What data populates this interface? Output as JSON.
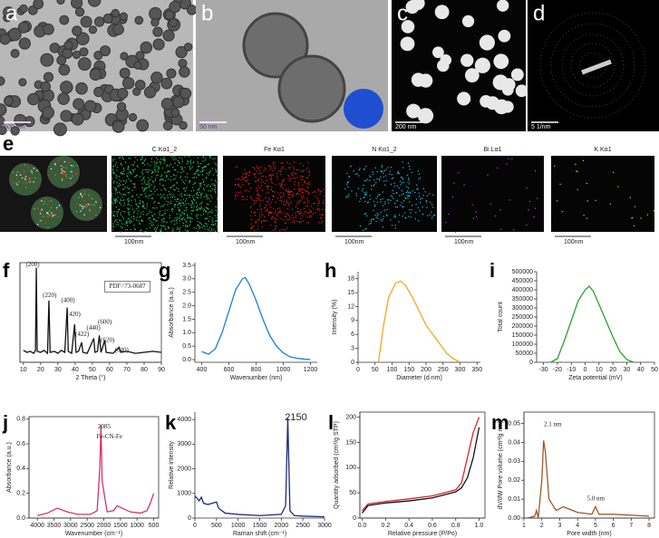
{
  "image_panels": [
    {
      "label": "a",
      "scale_bar": "500 nm"
    },
    {
      "label": "b",
      "scale_bar": "50 nm"
    },
    {
      "label": "c",
      "scale_bar": "200 nm"
    },
    {
      "label": "d",
      "scale_bar": "5 1/nm"
    }
  ],
  "eds": {
    "label": "e",
    "maps": [
      {
        "title": "C Kα1_2",
        "scale_bar": "100nm"
      },
      {
        "title": "Fe Kα1",
        "scale_bar": "100nm"
      },
      {
        "title": "N Kα1_2",
        "scale_bar": "100nm"
      },
      {
        "title": "Bi Lα1",
        "scale_bar": "100nm"
      },
      {
        "title": "K Kα1",
        "scale_bar": "100nm"
      }
    ]
  },
  "chart_data": [
    {
      "panel": "f",
      "type": "line",
      "frame": true,
      "xlabel": "2 Theta (°)",
      "xlim": [
        8,
        90
      ],
      "xticks": [
        10,
        20,
        30,
        40,
        50,
        60,
        70,
        80,
        90
      ],
      "ylim": [
        0,
        100
      ],
      "x": [
        10,
        12,
        14,
        16,
        17,
        17.5,
        18,
        20,
        22,
        24,
        24.8,
        25.5,
        28,
        30,
        32,
        34,
        35.4,
        36,
        38,
        39.7,
        40.5,
        42,
        43.8,
        44.5,
        47,
        50.8,
        51.5,
        53,
        54,
        55,
        57.2,
        58,
        62,
        65.5,
        66.5,
        70,
        75,
        80,
        85,
        90
      ],
      "series": [
        {
          "color": "#111111",
          "values": [
            12,
            10,
            11,
            9,
            12,
            95,
            11,
            10,
            12,
            9,
            62,
            10,
            11,
            9,
            12,
            10,
            55,
            11,
            9,
            38,
            10,
            11,
            20,
            10,
            9,
            24,
            10,
            11,
            27,
            10,
            22,
            10,
            9,
            15,
            10,
            11,
            9,
            10,
            11,
            10
          ]
        }
      ],
      "annotations": [
        "(200)",
        "(220)",
        "(400)",
        "(420)",
        "(422)",
        "(440)",
        "(600)",
        "(620)",
        "(640)",
        "PDF=73-0687"
      ]
    },
    {
      "panel": "g",
      "type": "line",
      "xlabel": "Wavenumber (nm)",
      "ylabel": "Absorbance (a.u.)",
      "xlim": [
        350,
        1250
      ],
      "xticks": [
        400,
        600,
        800,
        1000,
        1200
      ],
      "ylim": [
        -0.1,
        3.6
      ],
      "yticks": [
        {
          "value": 0,
          "label": "0.0"
        },
        0.5,
        {
          "value": 1,
          "label": "1.0"
        },
        1.5,
        {
          "value": 2,
          "label": "2.0"
        },
        2.5,
        {
          "value": 3,
          "label": "3.0"
        },
        3.5
      ],
      "x": [
        400,
        450,
        500,
        550,
        600,
        650,
        700,
        720,
        750,
        800,
        850,
        900,
        950,
        1000,
        1050,
        1100,
        1150,
        1200
      ],
      "series": [
        {
          "color": "#1a7fd0",
          "values": [
            0.3,
            0.2,
            0.4,
            1.0,
            1.8,
            2.6,
            3.0,
            3.05,
            2.8,
            2.2,
            1.5,
            0.9,
            0.5,
            0.25,
            0.1,
            0.05,
            0.02,
            0.0
          ]
        }
      ]
    },
    {
      "panel": "h",
      "type": "line",
      "xlabel": "Diameter (d.nm)",
      "ylabel": "Intensity (%)",
      "xlim": [
        0,
        360
      ],
      "xticks": [
        0,
        50,
        100,
        150,
        200,
        250,
        300,
        350
      ],
      "ylim": [
        0,
        19.5
      ],
      "yticks": [
        0,
        3,
        6,
        9,
        12,
        15,
        18
      ],
      "x": [
        60,
        75,
        90,
        110,
        125,
        140,
        160,
        180,
        200,
        220,
        240,
        260,
        280,
        300
      ],
      "series": [
        {
          "color": "#f5a623",
          "values": [
            0,
            8,
            14,
            17,
            17.5,
            16.5,
            14,
            11,
            8,
            6,
            4,
            2,
            0.8,
            0
          ]
        }
      ]
    },
    {
      "panel": "i",
      "type": "line",
      "xlabel": "Zeta potential (mV)",
      "ylabel": "Total count",
      "xlim": [
        -35,
        50
      ],
      "xticks": [
        -30,
        -20,
        -10,
        0,
        10,
        20,
        30,
        40,
        50
      ],
      "ylim": [
        0,
        500000
      ],
      "yticks": [
        0,
        50000,
        100000,
        150000,
        200000,
        250000,
        300000,
        350000,
        400000,
        450000,
        500000
      ],
      "x": [
        -25,
        -20,
        -15,
        -10,
        -5,
        0,
        3,
        6,
        10,
        15,
        20,
        25,
        30,
        35
      ],
      "series": [
        {
          "color": "#2ca02c",
          "values": [
            0,
            20000,
            120000,
            230000,
            340000,
            400000,
            420000,
            390000,
            320000,
            230000,
            140000,
            60000,
            15000,
            0
          ]
        }
      ]
    },
    {
      "panel": "j",
      "type": "line",
      "frame": true,
      "xlabel": "Wavenumber (cm⁻¹)",
      "ylabel": "Absorbance (a.u.)",
      "xlim": [
        4250,
        350
      ],
      "xticks": [
        4000,
        3500,
        3000,
        2500,
        2000,
        1500,
        1000,
        500
      ],
      "ylim": [
        0,
        0.82
      ],
      "yticks": [
        {
          "value": 0,
          "label": "0.0"
        },
        0.2,
        0.4,
        0.6,
        0.8
      ],
      "x": [
        4000,
        3700,
        3400,
        3100,
        2800,
        2400,
        2200,
        2120,
        2085,
        2050,
        1900,
        1700,
        1600,
        1450,
        1200,
        900,
        700,
        600,
        500
      ],
      "series": [
        {
          "color": "#d6336c",
          "values": [
            0.02,
            0.04,
            0.08,
            0.05,
            0.03,
            0.03,
            0.06,
            0.4,
            0.75,
            0.3,
            0.05,
            0.06,
            0.1,
            0.08,
            0.05,
            0.04,
            0.06,
            0.12,
            0.2
          ]
        }
      ],
      "annotations": [
        "2085",
        "Fe-CN-Fe"
      ]
    },
    {
      "panel": "k",
      "type": "line",
      "xlabel": "Raman shift (cm⁻¹)",
      "ylabel": "Relative intensity",
      "xlim": [
        0,
        3000
      ],
      "xticks": [
        0,
        500,
        1000,
        1500,
        2000,
        2500,
        3000
      ],
      "ylim": [
        0,
        4300
      ],
      "yticks": [
        0,
        1000,
        2000,
        3000,
        4000
      ],
      "x": [
        0,
        100,
        150,
        200,
        300,
        500,
        550,
        700,
        1000,
        1500,
        2000,
        2100,
        2150,
        2200,
        2300,
        2500,
        3000
      ],
      "series": [
        {
          "color": "#1f2a7a",
          "values": [
            900,
            700,
            850,
            600,
            550,
            650,
            400,
            200,
            150,
            100,
            150,
            500,
            4050,
            300,
            100,
            80,
            50
          ]
        }
      ],
      "annotations": [
        "2150"
      ]
    },
    {
      "panel": "l",
      "type": "line",
      "frame": true,
      "xlabel": "Relative pressure (P/Po)",
      "ylabel": "Quantity adsorbed (cm³/g STP)",
      "xlim": [
        -0.02,
        1.05
      ],
      "xticks": [
        {
          "value": 0,
          "label": "0.0"
        },
        0.2,
        0.4,
        0.6,
        0.8,
        {
          "value": 1,
          "label": "1.0"
        }
      ],
      "ylim": [
        0,
        210
      ],
      "yticks": [
        0,
        50,
        100,
        150,
        200
      ],
      "x": [
        0,
        0.05,
        0.2,
        0.4,
        0.6,
        0.8,
        0.85,
        0.9,
        0.95,
        1.0
      ],
      "series": [
        {
          "color": "#111111",
          "values": [
            10,
            25,
            30,
            34,
            40,
            52,
            60,
            80,
            120,
            180
          ]
        },
        {
          "color": "#d62728",
          "values": [
            15,
            28,
            33,
            38,
            44,
            56,
            70,
            120,
            170,
            200
          ]
        }
      ]
    },
    {
      "panel": "m",
      "type": "line",
      "frame": true,
      "xlabel": "Pore width (nm)",
      "ylabel": "dV/dW Pore volume (cm³/g nm)",
      "xlim": [
        1,
        8.3
      ],
      "xticks": [
        1,
        2,
        3,
        4,
        5,
        6,
        7,
        8
      ],
      "ylim": [
        0,
        0.056
      ],
      "yticks": [
        {
          "value": 0,
          "label": "0.00"
        },
        0.01,
        0.02,
        0.03,
        0.04,
        0.05
      ],
      "x": [
        1.2,
        1.6,
        1.7,
        1.8,
        2.0,
        2.1,
        2.2,
        2.4,
        2.8,
        3.2,
        4,
        4.8,
        5.0,
        5.2,
        6,
        8
      ],
      "series": [
        {
          "color": "#9c5a2a",
          "values": [
            0,
            0.001,
            0.004,
            0.0,
            0.02,
            0.041,
            0.035,
            0.01,
            0.004,
            0.006,
            0.003,
            0.002,
            0.006,
            0.002,
            0.002,
            0.001
          ]
        }
      ],
      "annotations": [
        "2.1 nm",
        "5.0 nm"
      ]
    }
  ]
}
